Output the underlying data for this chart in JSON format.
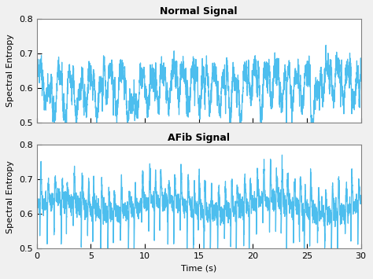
{
  "title1": "Normal Signal",
  "title2": "AFib Signal",
  "xlabel": "Time (s)",
  "ylabel": "Spectral Entropy",
  "xlim": [
    0,
    30
  ],
  "ylim": [
    0.5,
    0.8
  ],
  "yticks": [
    0.5,
    0.6,
    0.7,
    0.8
  ],
  "xticks": [
    0,
    5,
    10,
    15,
    20,
    25,
    30
  ],
  "line_color": "#4DBEEE",
  "line_width": 0.9,
  "background_color": "#f0f0f0",
  "axes_bg": "#ffffff",
  "title_fontsize": 9,
  "label_fontsize": 8,
  "tick_fontsize": 8
}
